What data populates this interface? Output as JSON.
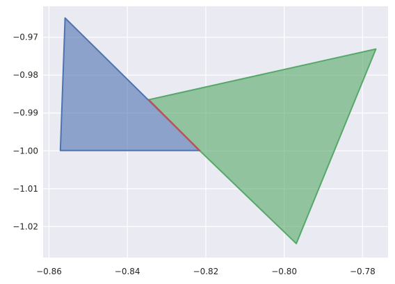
{
  "chart_data": {
    "type": "area",
    "title": "",
    "xlabel": "",
    "ylabel": "",
    "xlim": [
      -0.8615,
      -0.7735
    ],
    "ylim": [
      -1.0282,
      -0.9618
    ],
    "grid": true,
    "style": "seaborn-darkgrid",
    "x_ticks": [
      {
        "value": -0.86,
        "label": "−0.86"
      },
      {
        "value": -0.84,
        "label": "−0.84"
      },
      {
        "value": -0.82,
        "label": "−0.82"
      },
      {
        "value": -0.8,
        "label": "−0.80"
      },
      {
        "value": -0.78,
        "label": "−0.78"
      }
    ],
    "y_ticks": [
      {
        "value": -0.97,
        "label": "−0.97"
      },
      {
        "value": -0.98,
        "label": "−0.98"
      },
      {
        "value": -0.99,
        "label": "−0.99"
      },
      {
        "value": -1.0,
        "label": "−1.00"
      },
      {
        "value": -1.01,
        "label": "−1.01"
      },
      {
        "value": -1.02,
        "label": "−1.02"
      }
    ],
    "polygons": [
      {
        "name": "",
        "fill": "#4c72b0",
        "stroke": "#4c72b0",
        "opacity": 0.6,
        "points": [
          [
            -0.8559,
            -0.9649
          ],
          [
            -0.8571,
            -0.9999
          ],
          [
            -0.8216,
            -0.9999
          ]
        ]
      },
      {
        "name": "",
        "fill": "#55a868",
        "stroke": "#55a868",
        "opacity": 0.6,
        "points": [
          [
            -0.8346,
            -0.9865
          ],
          [
            -0.7766,
            -0.9731
          ],
          [
            -0.7969,
            -1.0245
          ],
          [
            -0.8216,
            -0.9999
          ]
        ]
      }
    ],
    "segments": [
      {
        "name": "",
        "color": "#c44e52",
        "points": [
          [
            -0.8346,
            -0.9865
          ],
          [
            -0.8216,
            -0.9999
          ]
        ]
      }
    ]
  }
}
